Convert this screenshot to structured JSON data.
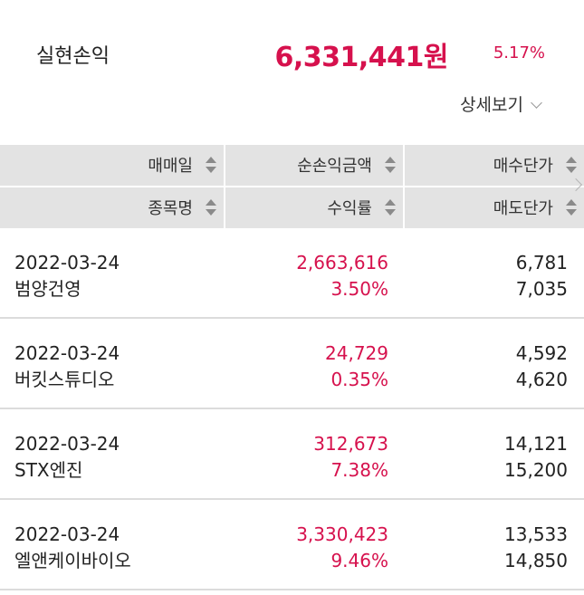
{
  "summary": {
    "label": "실현손익",
    "amount": "6,331,441원",
    "rate": "5.17%",
    "detail_label": "상세보기",
    "accent_color": "#d6114d"
  },
  "table": {
    "headers_top": [
      "매매일",
      "순손익금액",
      "매수단가"
    ],
    "headers_bottom": [
      "종목명",
      "수익률",
      "매도단가"
    ],
    "rows": [
      {
        "date": "2022-03-24",
        "name": "범양건영",
        "pnl": "2,663,616",
        "rate": "3.50%",
        "buy": "6,781",
        "sell": "7,035"
      },
      {
        "date": "2022-03-24",
        "name": "버킷스튜디오",
        "pnl": "24,729",
        "rate": "0.35%",
        "buy": "4,592",
        "sell": "4,620"
      },
      {
        "date": "2022-03-24",
        "name": "STX엔진",
        "pnl": "312,673",
        "rate": "7.38%",
        "buy": "14,121",
        "sell": "15,200"
      },
      {
        "date": "2022-03-24",
        "name": "엘앤케이바이오",
        "pnl": "3,330,423",
        "rate": "9.46%",
        "buy": "13,533",
        "sell": "14,850"
      }
    ]
  }
}
